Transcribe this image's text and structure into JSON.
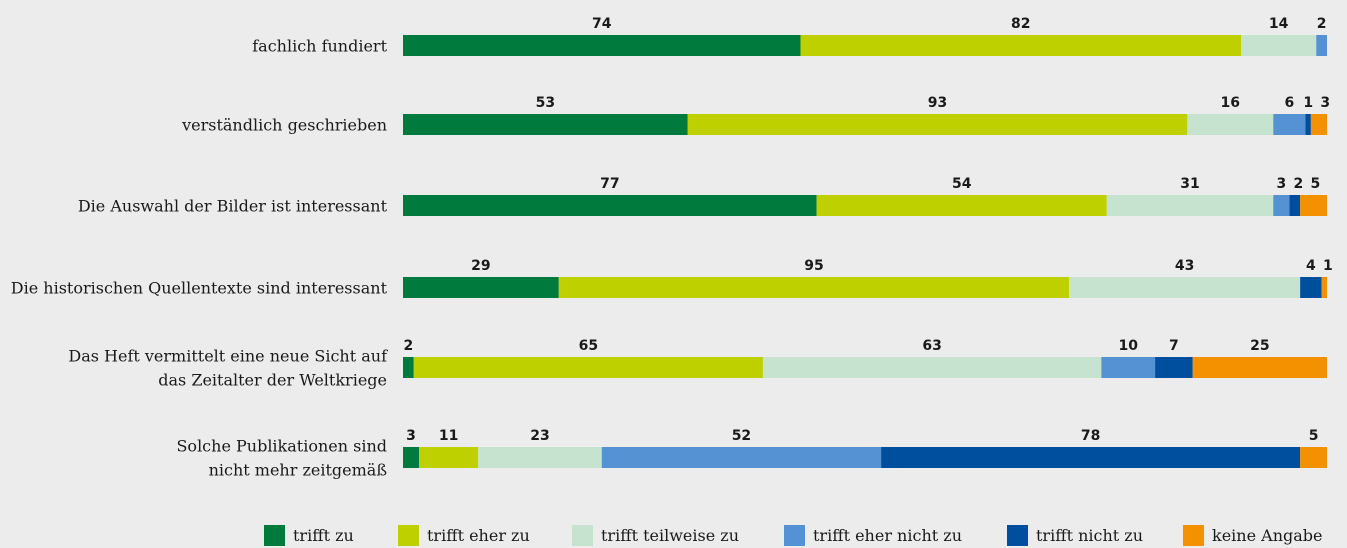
{
  "chart_data": {
    "type": "bar",
    "stacked": true,
    "orientation": "horizontal",
    "categories": [
      [
        "fachlich fundiert"
      ],
      [
        "verständlich geschrieben"
      ],
      [
        "Die Auswahl der Bilder ist interessant"
      ],
      [
        "Die historischen Quellentexte sind interessant"
      ],
      [
        "Das Heft vermittelt eine neue Sicht auf",
        "das Zeitalter der Weltkriege"
      ],
      [
        "Solche Publikationen sind",
        "nicht mehr zeitgemäß"
      ]
    ],
    "series": [
      {
        "name": "trifft zu",
        "color": "#007a3d",
        "values": [
          74,
          53,
          77,
          29,
          2,
          3
        ]
      },
      {
        "name": "trifft eher zu",
        "color": "#bfd000",
        "values": [
          82,
          93,
          54,
          95,
          65,
          11
        ]
      },
      {
        "name": "trifft teilweise zu",
        "color": "#c5e3cf",
        "values": [
          14,
          16,
          31,
          43,
          63,
          23
        ]
      },
      {
        "name": "trifft eher nicht zu",
        "color": "#5592d3",
        "values": [
          2,
          6,
          3,
          0,
          10,
          52
        ]
      },
      {
        "name": "trifft nicht zu",
        "color": "#004f9f",
        "values": [
          0,
          1,
          2,
          4,
          7,
          78
        ]
      },
      {
        "name": "keine Angabe",
        "color": "#f39100",
        "values": [
          0,
          3,
          5,
          1,
          25,
          5
        ]
      }
    ],
    "legend_position": "bottom",
    "grid": false
  }
}
